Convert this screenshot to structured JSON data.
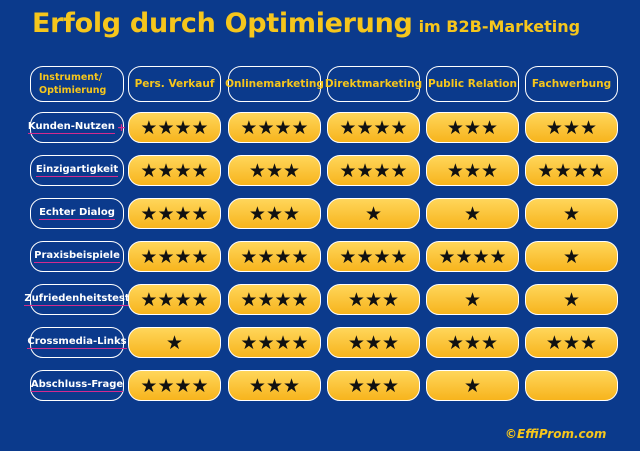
{
  "title": {
    "main": "Erfolg durch Optimierung",
    "sub": "im B2B-Marketing"
  },
  "corner": {
    "line1": "Instrument/",
    "line2": "Optimierung"
  },
  "columns": [
    "Pers. Verkauf",
    "Onlinemarketing",
    "Direktmarketing",
    "Public Relation",
    "Fachwerbung"
  ],
  "rows": [
    {
      "label": "Kunden-Nutzen",
      "plus": "+",
      "ratings": [
        4,
        4,
        4,
        3,
        3
      ]
    },
    {
      "label": "Einzigartigkeit",
      "plus": "",
      "ratings": [
        4,
        3,
        4,
        3,
        4
      ]
    },
    {
      "label": "Echter Dialog",
      "plus": "",
      "ratings": [
        4,
        3,
        1,
        1,
        1
      ]
    },
    {
      "label": "Praxisbeispiele",
      "plus": "",
      "ratings": [
        4,
        4,
        4,
        4,
        1
      ]
    },
    {
      "label": "Zufriedenheitstest",
      "plus": "",
      "ratings": [
        4,
        4,
        3,
        1,
        1
      ]
    },
    {
      "label": "Crossmedia-Links",
      "plus": "",
      "ratings": [
        1,
        4,
        3,
        3,
        3
      ]
    },
    {
      "label": "Abschluss-Frage",
      "plus": "",
      "ratings": [
        4,
        3,
        3,
        1,
        0
      ]
    }
  ],
  "star_icon": "star-icon",
  "footer": "©EffiProm.com",
  "colors": {
    "background": "#0b3a8c",
    "accent": "#f6c61c",
    "cell_fill": "#f7b41d",
    "underline": "#d22a8e"
  }
}
